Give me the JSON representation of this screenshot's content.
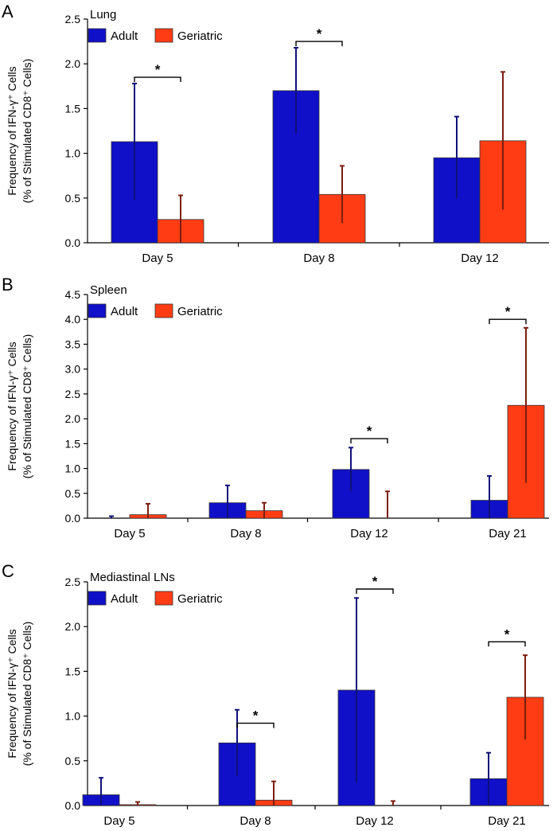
{
  "colors": {
    "adult": "#1010c8",
    "geriatric": "#ff3c14",
    "adult_err": "#10107a",
    "geriatric_err": "#7a1e10",
    "axis": "#000000"
  },
  "chart_data": [
    {
      "panel": "A",
      "type": "bar",
      "title": "Lung",
      "ylabel_line1": "Frequency of IFN-γ⁺ Cells",
      "ylabel_line2": "(% of Stimulated CD8⁺ Cells)",
      "ylim": [
        0,
        2.5
      ],
      "yticks": [
        "0.0",
        "0.5",
        "1.0",
        "1.5",
        "2.0",
        "2.5"
      ],
      "categories": [
        "Day 5",
        "Day 8",
        "Day 12"
      ],
      "series": [
        {
          "name": "Adult",
          "values": [
            1.13,
            1.7,
            0.95
          ],
          "errors": [
            0.65,
            0.48,
            0.46
          ]
        },
        {
          "name": "Geriatric",
          "values": [
            0.26,
            0.54,
            1.14
          ],
          "errors": [
            0.27,
            0.32,
            0.77
          ]
        }
      ],
      "significance": [
        {
          "category": 0,
          "label": "*",
          "y": 1.85
        },
        {
          "category": 1,
          "label": "*",
          "y": 2.25
        }
      ]
    },
    {
      "panel": "B",
      "type": "bar",
      "title": "Spleen",
      "ylabel_line1": "Frequency of IFN-γ⁺ Cells",
      "ylabel_line2": "(% of Stimulated CD8⁺ Cells)",
      "ylim": [
        0,
        4.5
      ],
      "yticks": [
        "0.0",
        "0.5",
        "1.0",
        "1.5",
        "2.0",
        "2.5",
        "3.0",
        "3.5",
        "4.0",
        "4.5"
      ],
      "categories": [
        "Day 5",
        "Day 8",
        "Day 12",
        "Day 21"
      ],
      "series": [
        {
          "name": "Adult",
          "values": [
            0.0,
            0.31,
            0.98,
            0.36
          ],
          "errors": [
            0.04,
            0.35,
            0.44,
            0.49
          ]
        },
        {
          "name": "Geriatric",
          "values": [
            0.07,
            0.15,
            0.0,
            2.27
          ],
          "errors": [
            0.22,
            0.16,
            0.54,
            1.56
          ]
        }
      ],
      "significance": [
        {
          "category": 2,
          "label": "*",
          "y": 1.6
        },
        {
          "category": 3,
          "label": "*",
          "y": 4.0
        }
      ]
    },
    {
      "panel": "C",
      "type": "bar",
      "title": "Mediastinal LNs",
      "ylabel_line1": "Frequency of IFN-γ⁺ Cells",
      "ylabel_line2": "(% of Stimulated CD8⁺ Cells)",
      "ylim": [
        0,
        2.5
      ],
      "yticks": [
        "0.0",
        "0.5",
        "1.0",
        "1.5",
        "2.0",
        "2.5"
      ],
      "categories": [
        "Day 5",
        "Day 8",
        "Day 12",
        "Day 21"
      ],
      "series": [
        {
          "name": "Adult",
          "values": [
            0.12,
            0.7,
            1.29,
            0.3
          ],
          "errors": [
            0.19,
            0.37,
            1.03,
            0.29
          ]
        },
        {
          "name": "Geriatric",
          "values": [
            0.01,
            0.06,
            0.0,
            1.21
          ],
          "errors": [
            0.03,
            0.21,
            0.05,
            0.47
          ]
        }
      ],
      "significance": [
        {
          "category": 1,
          "label": "*",
          "y": 0.92
        },
        {
          "category": 2,
          "label": "*",
          "y": 2.42
        },
        {
          "category": 3,
          "label": "*",
          "y": 1.83
        }
      ]
    }
  ]
}
